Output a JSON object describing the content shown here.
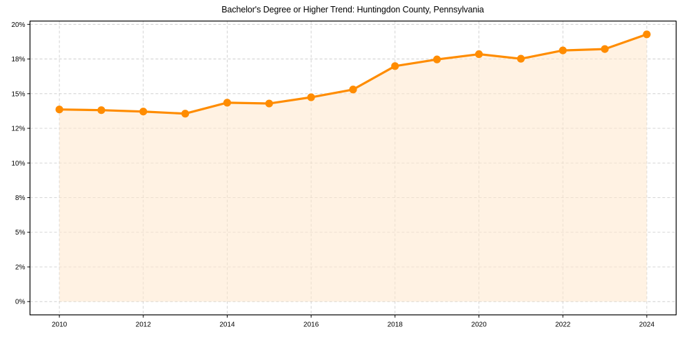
{
  "chart_data": {
    "type": "line",
    "title": "Bachelor's Degree or Higher Trend: Huntingdon County, Pennsylvania",
    "xlabel": "",
    "ylabel": "",
    "x": [
      2010,
      2011,
      2012,
      2013,
      2014,
      2015,
      2016,
      2017,
      2018,
      2019,
      2020,
      2021,
      2022,
      2023,
      2024
    ],
    "series": [
      {
        "name": "Bachelor's Degree or Higher (%)",
        "values": [
          13.86,
          13.81,
          13.71,
          13.56,
          14.35,
          14.29,
          14.74,
          15.3,
          16.99,
          17.47,
          17.85,
          17.52,
          18.12,
          18.22,
          19.28
        ],
        "color": "#ff8c00",
        "fill_color": "#ffe8cc",
        "marker": "circle",
        "area_fill": true
      }
    ],
    "xticks": [
      2010,
      2012,
      2014,
      2016,
      2018,
      2020,
      2022,
      2024
    ],
    "xtick_labels": [
      "2010",
      "2012",
      "2014",
      "2016",
      "2018",
      "2020",
      "2022",
      "2024"
    ],
    "yticks": [
      0,
      2.5,
      5,
      7.5,
      10,
      12.5,
      15,
      17.5,
      20
    ],
    "ytick_labels": [
      "0%",
      "2%",
      "5%",
      "8%",
      "10%",
      "12%",
      "15%",
      "18%",
      "20%"
    ],
    "xlim": [
      2009.3,
      2024.7
    ],
    "ylim": [
      -0.96,
      20.24
    ],
    "grid": true,
    "grid_style": "dashed",
    "legend": null
  }
}
